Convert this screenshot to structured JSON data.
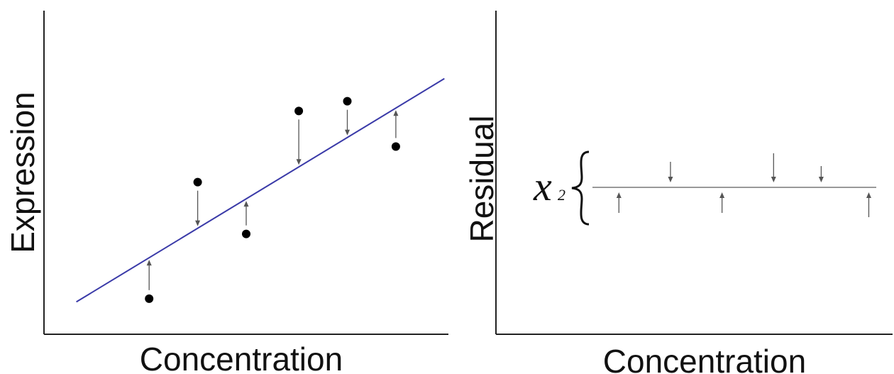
{
  "colors": {
    "fit_line": "#3a3aa8",
    "points": "#000000",
    "residual_arrows": "#555555",
    "axes": "#222222",
    "baseline": "#999999"
  },
  "chart_data": [
    {
      "type": "scatter",
      "xlabel": "Concentration",
      "ylabel": "Expression",
      "grid": false,
      "xlim": [
        0,
        10
      ],
      "ylim": [
        0,
        10
      ],
      "fit_line": {
        "x": [
          0.8,
          9.9
        ],
        "y": [
          1.0,
          7.9
        ]
      },
      "points": [
        {
          "x": 2.6,
          "y": 1.1
        },
        {
          "x": 3.8,
          "y": 4.7
        },
        {
          "x": 5.0,
          "y": 3.1
        },
        {
          "x": 6.3,
          "y": 6.9
        },
        {
          "x": 7.5,
          "y": 7.2
        },
        {
          "x": 8.7,
          "y": 5.8
        }
      ]
    },
    {
      "type": "scatter",
      "xlabel": "Concentration",
      "ylabel": "Residual",
      "grid": false,
      "xlim": [
        0,
        10
      ],
      "ylim": [
        -5,
        5
      ],
      "baseline_y": 0,
      "annotation": {
        "symbol": "x",
        "subscript": "2"
      },
      "residual_arrows": [
        {
          "x": 3.1,
          "y": -0.8
        },
        {
          "x": 4.4,
          "y": 0.8
        },
        {
          "x": 5.7,
          "y": -0.8
        },
        {
          "x": 7.0,
          "y": 1.2
        },
        {
          "x": 8.2,
          "y": 0.6
        },
        {
          "x": 9.4,
          "y": -1.0
        }
      ]
    }
  ]
}
